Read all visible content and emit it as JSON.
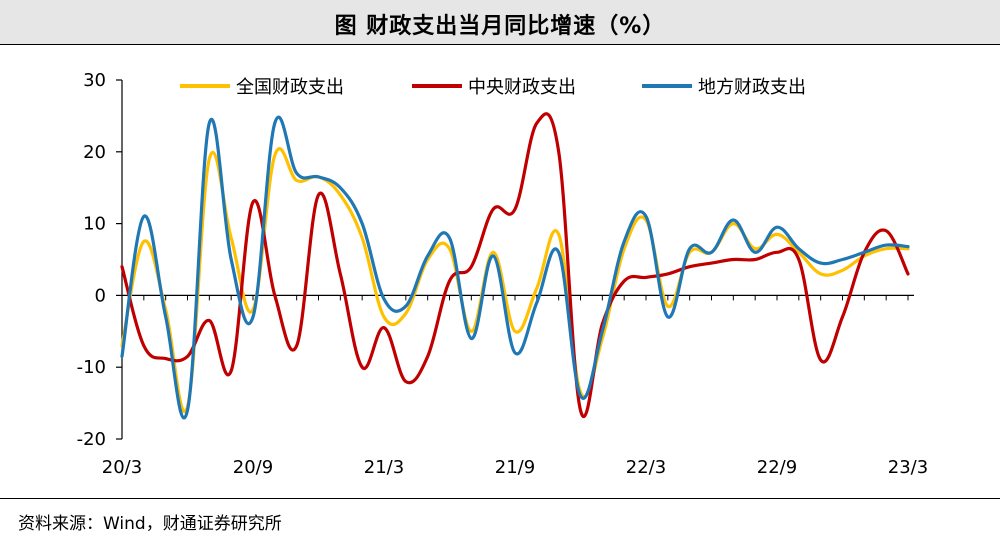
{
  "title": "图  财政支出当月同比增速（%）",
  "source": "资料来源：Wind，财通证券研究所",
  "chart_data": {
    "type": "line",
    "title": "图  财政支出当月同比增速（%）",
    "xlabel": "",
    "ylabel": "",
    "ylim": [
      -20,
      30
    ],
    "yticks": [
      -20,
      -10,
      0,
      10,
      20,
      30
    ],
    "x": [
      "2020/3",
      "2020/4",
      "2020/5",
      "2020/6",
      "2020/7",
      "2020/8",
      "2020/9",
      "2020/10",
      "2020/11",
      "2020/12",
      "2021/1",
      "2021/2",
      "2021/3",
      "2021/4",
      "2021/5",
      "2021/6",
      "2021/7",
      "2021/8",
      "2021/9",
      "2021/10",
      "2021/11",
      "2021/12",
      "2022/1",
      "2022/2",
      "2022/3",
      "2022/4",
      "2022/5",
      "2022/6",
      "2022/7",
      "2022/8",
      "2022/9",
      "2022/10",
      "2022/11",
      "2022/12",
      "2023/1",
      "2023/2",
      "2023/3"
    ],
    "xtick_labels": [
      {
        "index": 0,
        "label": "20/3"
      },
      {
        "index": 6,
        "label": "20/9"
      },
      {
        "index": 12,
        "label": "21/3"
      },
      {
        "index": 18,
        "label": "21/9"
      },
      {
        "index": 24,
        "label": "22/3"
      },
      {
        "index": 30,
        "label": "22/9"
      },
      {
        "index": 36,
        "label": "23/3"
      }
    ],
    "legend_position": "top",
    "grid": false,
    "series": [
      {
        "name": "全国财政支出",
        "color": "#FFC000",
        "values": [
          -7,
          7.5,
          -2,
          -15.5,
          19,
          8,
          -2,
          19.5,
          16,
          16.5,
          14,
          8,
          -3,
          -2.5,
          5,
          6.5,
          -5,
          6,
          -5,
          1,
          8.5,
          -13.5,
          -6,
          6.5,
          10.5,
          -1.5,
          6,
          6,
          10,
          6.5,
          8.5,
          6,
          3,
          3.5,
          5.5,
          6.5,
          6.5
        ]
      },
      {
        "name": "中央财政支出",
        "color": "#C00000",
        "values": [
          4,
          -7,
          -8.8,
          -8.5,
          -3.5,
          -10.5,
          13,
          0,
          -7,
          14,
          3,
          -10,
          -4.5,
          -12,
          -8.5,
          2,
          4,
          12,
          12,
          24,
          20,
          -16,
          -4,
          2,
          2.5,
          3,
          4,
          4.5,
          5,
          5,
          6,
          5,
          -9,
          -3,
          6,
          9,
          3
        ]
      },
      {
        "name": "地方财政支出",
        "color": "#1F77B4",
        "values": [
          -8.5,
          11,
          -3,
          -16,
          24,
          5,
          -3,
          24,
          17,
          16.5,
          15,
          10,
          -0.5,
          -1.5,
          5.5,
          8,
          -6,
          5.5,
          -8,
          -1,
          6,
          -14,
          -5,
          7.5,
          11,
          -3,
          6.5,
          6,
          10.5,
          6,
          9.5,
          6.5,
          4.5,
          5,
          6,
          7,
          6.8
        ]
      }
    ]
  }
}
